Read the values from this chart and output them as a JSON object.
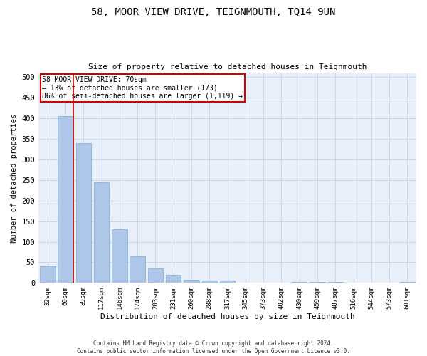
{
  "title": "58, MOOR VIEW DRIVE, TEIGNMOUTH, TQ14 9UN",
  "subtitle": "Size of property relative to detached houses in Teignmouth",
  "xlabel": "Distribution of detached houses by size in Teignmouth",
  "ylabel": "Number of detached properties",
  "footer_line1": "Contains HM Land Registry data © Crown copyright and database right 2024.",
  "footer_line2": "Contains public sector information licensed under the Open Government Licence v3.0.",
  "categories": [
    "32sqm",
    "60sqm",
    "89sqm",
    "117sqm",
    "146sqm",
    "174sqm",
    "203sqm",
    "231sqm",
    "260sqm",
    "288sqm",
    "317sqm",
    "345sqm",
    "373sqm",
    "402sqm",
    "430sqm",
    "459sqm",
    "487sqm",
    "516sqm",
    "544sqm",
    "573sqm",
    "601sqm"
  ],
  "values": [
    40,
    405,
    340,
    245,
    130,
    65,
    35,
    20,
    7,
    5,
    5,
    0,
    0,
    0,
    3,
    3,
    3,
    0,
    0,
    0,
    2
  ],
  "bar_color": "#aec6e8",
  "bar_edge_color": "#7aadd4",
  "grid_color": "#c8d8ec",
  "bg_color": "#e8eff8",
  "property_line_color": "#cc0000",
  "annotation_text": "58 MOOR VIEW DRIVE: 70sqm\n← 13% of detached houses are smaller (173)\n86% of semi-detached houses are larger (1,119) →",
  "annotation_box_color": "#cc0000",
  "ylim": [
    0,
    510
  ],
  "yticks": [
    0,
    50,
    100,
    150,
    200,
    250,
    300,
    350,
    400,
    450,
    500
  ]
}
